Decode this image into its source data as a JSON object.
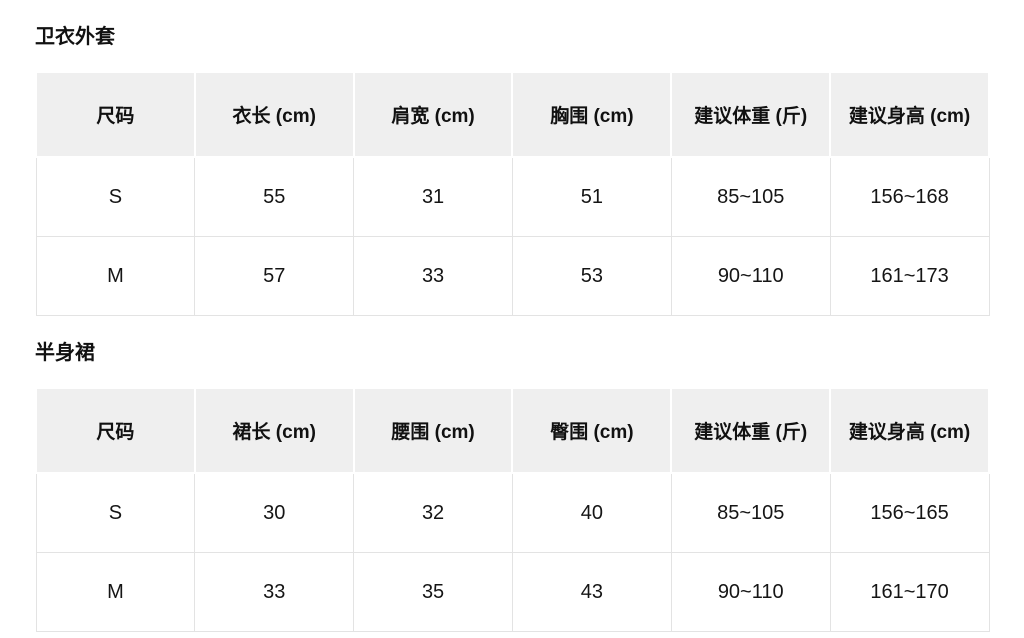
{
  "colors": {
    "header_background": "#efefef",
    "body_border": "#e3e3e3",
    "text": "#151515",
    "page_background": "#ffffff"
  },
  "page": {
    "sections": [
      {
        "title": "卫衣外套",
        "table": {
          "headers": [
            "尺码",
            "衣长 (cm)",
            "肩宽 (cm)",
            "胸围 (cm)",
            "建议体重 (斤)",
            "建议身高 (cm)"
          ],
          "rows": [
            [
              "S",
              "55",
              "31",
              "51",
              "85~105",
              "156~168"
            ],
            [
              "M",
              "57",
              "33",
              "53",
              "90~110",
              "161~173"
            ]
          ]
        }
      },
      {
        "title": "半身裙",
        "table": {
          "headers": [
            "尺码",
            "裙长 (cm)",
            "腰围 (cm)",
            "臀围 (cm)",
            "建议体重 (斤)",
            "建议身高 (cm)"
          ],
          "rows": [
            [
              "S",
              "30",
              "32",
              "40",
              "85~105",
              "156~165"
            ],
            [
              "M",
              "33",
              "35",
              "43",
              "90~110",
              "161~170"
            ]
          ]
        }
      }
    ]
  }
}
